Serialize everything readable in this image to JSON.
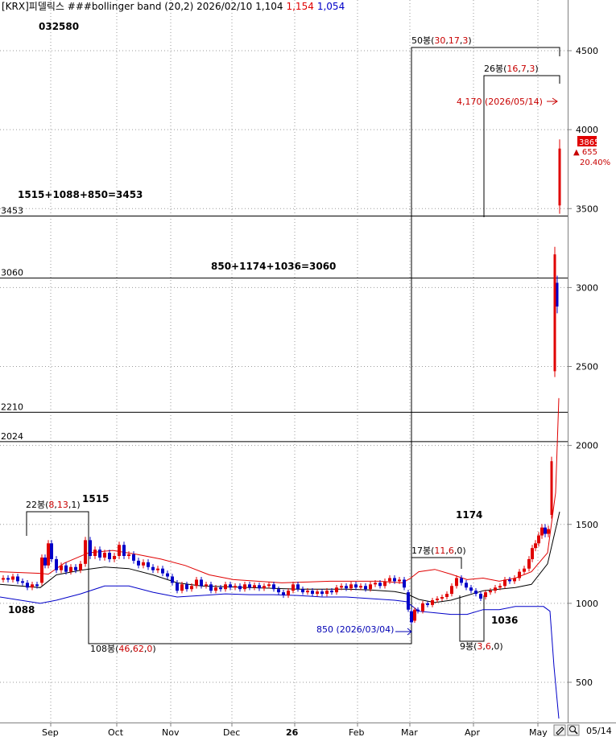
{
  "header": {
    "prefix": "[KRX]피델릭스 ###bollinger band  (20,2) 2026/02/10 1,104",
    "high": "1,154",
    "low": "1,054"
  },
  "symbol_code": "032580",
  "colors": {
    "up": "#e00000",
    "down": "#0000c8",
    "upper_band": "#e00000",
    "lower_band": "#0000c8",
    "mid_band": "#000000",
    "annotation_red": "#c80000",
    "annotation_blue": "#0000b4"
  },
  "chart_data": {
    "type": "candlestick",
    "title": "[KRX]피델릭스 ###bollinger band (20,2)",
    "ylim": [
      270,
      4780
    ],
    "y_ticks": [
      500,
      1000,
      1500,
      2000,
      2500,
      3000,
      3500,
      4000,
      4500
    ],
    "x_ticks": [
      "Sep",
      "Oct",
      "Nov",
      "Dec",
      "26",
      "Feb",
      "Mar",
      "Apr",
      "May"
    ],
    "x_range_end_label": "05/14",
    "horizontal_levels": [
      {
        "value": 3453,
        "label": "3453"
      },
      {
        "value": 3060,
        "label": "3060"
      },
      {
        "value": 2210,
        "label": "2210"
      },
      {
        "value": 2024,
        "label": "2024"
      }
    ],
    "formulas": [
      "1515+1088+850=3453",
      "850+1174+1036=3060"
    ],
    "price_labels": [
      "1515",
      "1088",
      "1174",
      "1036"
    ],
    "bar_counts": [
      {
        "text": "22봉",
        "nums": [
          "8",
          "13",
          "1"
        ]
      },
      {
        "text": "108봉",
        "nums": [
          "46",
          "62",
          "0"
        ]
      },
      {
        "text": "50봉",
        "nums": [
          "30",
          "17",
          "3"
        ]
      },
      {
        "text": "26봉",
        "nums": [
          "16",
          "7",
          "3"
        ]
      },
      {
        "text": "17봉",
        "nums": [
          "11",
          "6",
          "0"
        ]
      },
      {
        "text": "9봉",
        "nums": [
          "3",
          "6",
          "0"
        ]
      }
    ],
    "target_annotation": "4,170 (2026/05/14)",
    "low_annotation": "850 (2026/03/04)",
    "last_price": "3865",
    "change": "655",
    "change_pct": "20.40%",
    "series": [
      {
        "name": "upper band",
        "role": "upper",
        "x": [
          0,
          50,
          60,
          80,
          110,
          140,
          170,
          200,
          230,
          260,
          290,
          320,
          350,
          380,
          410,
          440,
          470,
          500,
          510,
          520,
          540,
          560,
          580,
          600,
          620,
          640,
          660,
          680,
          690,
          694
        ],
        "y": [
          1200,
          1190,
          1185,
          1255,
          1320,
          1335,
          1310,
          1280,
          1240,
          1180,
          1150,
          1140,
          1130,
          1135,
          1140,
          1140,
          1140,
          1130,
          1160,
          1200,
          1215,
          1185,
          1150,
          1160,
          1140,
          1160,
          1200,
          1320,
          1700,
          2300
        ]
      },
      {
        "name": "middle band",
        "role": "mid",
        "x": [
          0,
          50,
          70,
          100,
          130,
          160,
          190,
          220,
          250,
          280,
          310,
          340,
          370,
          400,
          430,
          460,
          490,
          505,
          520,
          540,
          560,
          580,
          600,
          620,
          640,
          660,
          680,
          695
        ],
        "y": [
          1120,
          1100,
          1180,
          1210,
          1230,
          1220,
          1180,
          1130,
          1110,
          1105,
          1100,
          1095,
          1090,
          1090,
          1090,
          1085,
          1075,
          1060,
          1025,
          1005,
          1020,
          1050,
          1080,
          1090,
          1100,
          1120,
          1250,
          1580
        ]
      },
      {
        "name": "lower band",
        "role": "lower",
        "x": [
          0,
          50,
          70,
          100,
          130,
          160,
          190,
          220,
          250,
          280,
          310,
          340,
          370,
          400,
          430,
          460,
          490,
          505,
          520,
          540,
          560,
          580,
          600,
          620,
          640,
          660,
          675,
          683,
          688,
          694
        ],
        "y": [
          1040,
          1000,
          1020,
          1060,
          1110,
          1110,
          1070,
          1040,
          1050,
          1060,
          1055,
          1055,
          1050,
          1040,
          1040,
          1030,
          1020,
          1010,
          950,
          940,
          930,
          930,
          960,
          960,
          980,
          980,
          980,
          950,
          600,
          270
        ]
      }
    ],
    "candles": [
      {
        "x": 4,
        "o": 1150,
        "c": 1160
      },
      {
        "x": 10,
        "o": 1160,
        "c": 1150
      },
      {
        "x": 16,
        "o": 1150,
        "c": 1170
      },
      {
        "x": 22,
        "o": 1170,
        "c": 1140
      },
      {
        "x": 28,
        "o": 1140,
        "c": 1130
      },
      {
        "x": 34,
        "o": 1130,
        "c": 1100
      },
      {
        "x": 40,
        "o": 1100,
        "c": 1120
      },
      {
        "x": 46,
        "o": 1120,
        "c": 1110
      },
      {
        "x": 52,
        "o": 1130,
        "c": 1290
      },
      {
        "x": 56,
        "o": 1290,
        "c": 1240
      },
      {
        "x": 60,
        "o": 1240,
        "c": 1380
      },
      {
        "x": 64,
        "o": 1380,
        "c": 1280
      },
      {
        "x": 70,
        "o": 1280,
        "c": 1210
      },
      {
        "x": 76,
        "o": 1210,
        "c": 1240
      },
      {
        "x": 82,
        "o": 1240,
        "c": 1200
      },
      {
        "x": 88,
        "o": 1200,
        "c": 1230
      },
      {
        "x": 94,
        "o": 1230,
        "c": 1210
      },
      {
        "x": 100,
        "o": 1210,
        "c": 1250
      },
      {
        "x": 106,
        "o": 1250,
        "c": 1400
      },
      {
        "x": 112,
        "o": 1400,
        "c": 1300
      },
      {
        "x": 118,
        "o": 1300,
        "c": 1340
      },
      {
        "x": 124,
        "o": 1340,
        "c": 1290
      },
      {
        "x": 130,
        "o": 1290,
        "c": 1320
      },
      {
        "x": 136,
        "o": 1320,
        "c": 1280
      },
      {
        "x": 142,
        "o": 1280,
        "c": 1300
      },
      {
        "x": 148,
        "o": 1300,
        "c": 1370
      },
      {
        "x": 154,
        "o": 1370,
        "c": 1300
      },
      {
        "x": 160,
        "o": 1300,
        "c": 1310
      },
      {
        "x": 166,
        "o": 1310,
        "c": 1270
      },
      {
        "x": 172,
        "o": 1270,
        "c": 1240
      },
      {
        "x": 178,
        "o": 1240,
        "c": 1260
      },
      {
        "x": 184,
        "o": 1260,
        "c": 1230
      },
      {
        "x": 190,
        "o": 1230,
        "c": 1210
      },
      {
        "x": 196,
        "o": 1210,
        "c": 1220
      },
      {
        "x": 202,
        "o": 1220,
        "c": 1190
      },
      {
        "x": 208,
        "o": 1190,
        "c": 1170
      },
      {
        "x": 214,
        "o": 1170,
        "c": 1130
      },
      {
        "x": 220,
        "o": 1130,
        "c": 1080
      },
      {
        "x": 226,
        "o": 1080,
        "c": 1120
      },
      {
        "x": 232,
        "o": 1120,
        "c": 1090
      },
      {
        "x": 238,
        "o": 1090,
        "c": 1110
      },
      {
        "x": 244,
        "o": 1110,
        "c": 1150
      },
      {
        "x": 250,
        "o": 1150,
        "c": 1110
      },
      {
        "x": 256,
        "o": 1110,
        "c": 1120
      },
      {
        "x": 262,
        "o": 1120,
        "c": 1080
      },
      {
        "x": 268,
        "o": 1080,
        "c": 1100
      },
      {
        "x": 274,
        "o": 1100,
        "c": 1090
      },
      {
        "x": 280,
        "o": 1090,
        "c": 1120
      },
      {
        "x": 286,
        "o": 1120,
        "c": 1100
      },
      {
        "x": 292,
        "o": 1100,
        "c": 1110
      },
      {
        "x": 298,
        "o": 1110,
        "c": 1090
      },
      {
        "x": 304,
        "o": 1090,
        "c": 1120
      },
      {
        "x": 310,
        "o": 1120,
        "c": 1100
      },
      {
        "x": 316,
        "o": 1100,
        "c": 1115
      },
      {
        "x": 322,
        "o": 1115,
        "c": 1095
      },
      {
        "x": 328,
        "o": 1095,
        "c": 1110
      },
      {
        "x": 334,
        "o": 1110,
        "c": 1120
      },
      {
        "x": 340,
        "o": 1120,
        "c": 1090
      },
      {
        "x": 346,
        "o": 1090,
        "c": 1070
      },
      {
        "x": 352,
        "o": 1070,
        "c": 1050
      },
      {
        "x": 358,
        "o": 1050,
        "c": 1080
      },
      {
        "x": 364,
        "o": 1080,
        "c": 1120
      },
      {
        "x": 370,
        "o": 1120,
        "c": 1090
      },
      {
        "x": 376,
        "o": 1090,
        "c": 1070
      },
      {
        "x": 382,
        "o": 1070,
        "c": 1080
      },
      {
        "x": 388,
        "o": 1080,
        "c": 1060
      },
      {
        "x": 394,
        "o": 1060,
        "c": 1075
      },
      {
        "x": 400,
        "o": 1075,
        "c": 1060
      },
      {
        "x": 406,
        "o": 1060,
        "c": 1080
      },
      {
        "x": 412,
        "o": 1080,
        "c": 1070
      },
      {
        "x": 418,
        "o": 1070,
        "c": 1100
      },
      {
        "x": 424,
        "o": 1100,
        "c": 1110
      },
      {
        "x": 430,
        "o": 1110,
        "c": 1095
      },
      {
        "x": 436,
        "o": 1095,
        "c": 1120
      },
      {
        "x": 442,
        "o": 1120,
        "c": 1100
      },
      {
        "x": 448,
        "o": 1100,
        "c": 1110
      },
      {
        "x": 454,
        "o": 1110,
        "c": 1090
      },
      {
        "x": 460,
        "o": 1090,
        "c": 1120
      },
      {
        "x": 466,
        "o": 1120,
        "c": 1130
      },
      {
        "x": 472,
        "o": 1130,
        "c": 1110
      },
      {
        "x": 478,
        "o": 1110,
        "c": 1140
      },
      {
        "x": 484,
        "o": 1140,
        "c": 1160
      },
      {
        "x": 490,
        "o": 1160,
        "c": 1140
      },
      {
        "x": 496,
        "o": 1140,
        "c": 1150
      },
      {
        "x": 502,
        "o": 1150,
        "c": 1100
      },
      {
        "x": 507,
        "o": 1070,
        "c": 960
      },
      {
        "x": 511,
        "o": 950,
        "c": 880
      },
      {
        "x": 515,
        "o": 890,
        "c": 960
      },
      {
        "x": 519,
        "o": 960,
        "c": 950
      },
      {
        "x": 525,
        "o": 950,
        "c": 1000
      },
      {
        "x": 531,
        "o": 1000,
        "c": 990
      },
      {
        "x": 537,
        "o": 990,
        "c": 1020
      },
      {
        "x": 543,
        "o": 1020,
        "c": 1030
      },
      {
        "x": 549,
        "o": 1030,
        "c": 1040
      },
      {
        "x": 555,
        "o": 1040,
        "c": 1060
      },
      {
        "x": 561,
        "o": 1060,
        "c": 1110
      },
      {
        "x": 567,
        "o": 1110,
        "c": 1160
      },
      {
        "x": 573,
        "o": 1160,
        "c": 1130
      },
      {
        "x": 579,
        "o": 1130,
        "c": 1100
      },
      {
        "x": 585,
        "o": 1100,
        "c": 1080
      },
      {
        "x": 591,
        "o": 1080,
        "c": 1060
      },
      {
        "x": 597,
        "o": 1060,
        "c": 1030
      },
      {
        "x": 603,
        "o": 1040,
        "c": 1070
      },
      {
        "x": 609,
        "o": 1070,
        "c": 1080
      },
      {
        "x": 615,
        "o": 1080,
        "c": 1100
      },
      {
        "x": 621,
        "o": 1100,
        "c": 1110
      },
      {
        "x": 627,
        "o": 1110,
        "c": 1150
      },
      {
        "x": 633,
        "o": 1150,
        "c": 1140
      },
      {
        "x": 639,
        "o": 1140,
        "c": 1160
      },
      {
        "x": 645,
        "o": 1160,
        "c": 1200
      },
      {
        "x": 651,
        "o": 1200,
        "c": 1220
      },
      {
        "x": 657,
        "o": 1220,
        "c": 1280
      },
      {
        "x": 661,
        "o": 1280,
        "c": 1350
      },
      {
        "x": 665,
        "o": 1350,
        "c": 1380
      },
      {
        "x": 669,
        "o": 1380,
        "c": 1430
      },
      {
        "x": 673,
        "o": 1430,
        "c": 1480
      },
      {
        "x": 677,
        "o": 1480,
        "c": 1440
      },
      {
        "x": 681,
        "o": 1440,
        "c": 1470
      },
      {
        "x": 685,
        "o": 1560,
        "c": 1900
      },
      {
        "x": 689,
        "o": 2470,
        "c": 3210
      },
      {
        "x": 692,
        "o": 3030,
        "c": 2880
      },
      {
        "x": 695,
        "o": 3520,
        "c": 3880
      }
    ]
  }
}
